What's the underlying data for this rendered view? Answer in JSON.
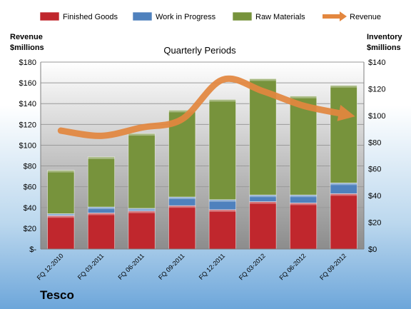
{
  "chart_data": {
    "type": "bar",
    "subtype": "stacked-bar-with-line",
    "title": "Quarterly Periods",
    "company": "Tesco",
    "ylabel_left": [
      "Revenue",
      "$millions"
    ],
    "ylabel_right": [
      "Inventory",
      "$millions"
    ],
    "categories": [
      "FQ 12-2010",
      "FQ 03-2011",
      "FQ 06-2011",
      "FQ 09-2011",
      "FQ 12-2011",
      "FQ 03-2012",
      "FQ 06-2012",
      "FQ 09-2012"
    ],
    "left_axis": {
      "min": 0,
      "max": 180,
      "step": 20,
      "ticks": [
        "$-",
        "$20",
        "$40",
        "$60",
        "$80",
        "$100",
        "$120",
        "$140",
        "$160",
        "$180"
      ]
    },
    "right_axis": {
      "min": 0,
      "max": 140,
      "step": 20,
      "ticks": [
        "$0",
        "$20",
        "$40",
        "$60",
        "$80",
        "$100",
        "$120",
        "$140"
      ]
    },
    "series": [
      {
        "name": "Finished Goods",
        "axis": "right",
        "color": "#c0272d",
        "values": [
          25,
          27,
          28.5,
          32.5,
          29.5,
          35.5,
          34.5,
          41.5
        ]
      },
      {
        "name": "Work in Progress",
        "axis": "right",
        "color": "#4f81bd",
        "values": [
          1.5,
          4.5,
          2,
          6.5,
          7.5,
          5,
          6,
          8
        ]
      },
      {
        "name": "Raw Materials",
        "axis": "right",
        "color": "#77933c",
        "values": [
          32.5,
          37.5,
          56,
          65,
          75,
          87,
          74,
          73
        ]
      },
      {
        "name": "Revenue",
        "axis": "left",
        "type": "line",
        "color": "#e3873f",
        "values": [
          114,
          109,
          117,
          125,
          163,
          152,
          138,
          130
        ]
      }
    ],
    "grid": true,
    "legend": "top"
  }
}
